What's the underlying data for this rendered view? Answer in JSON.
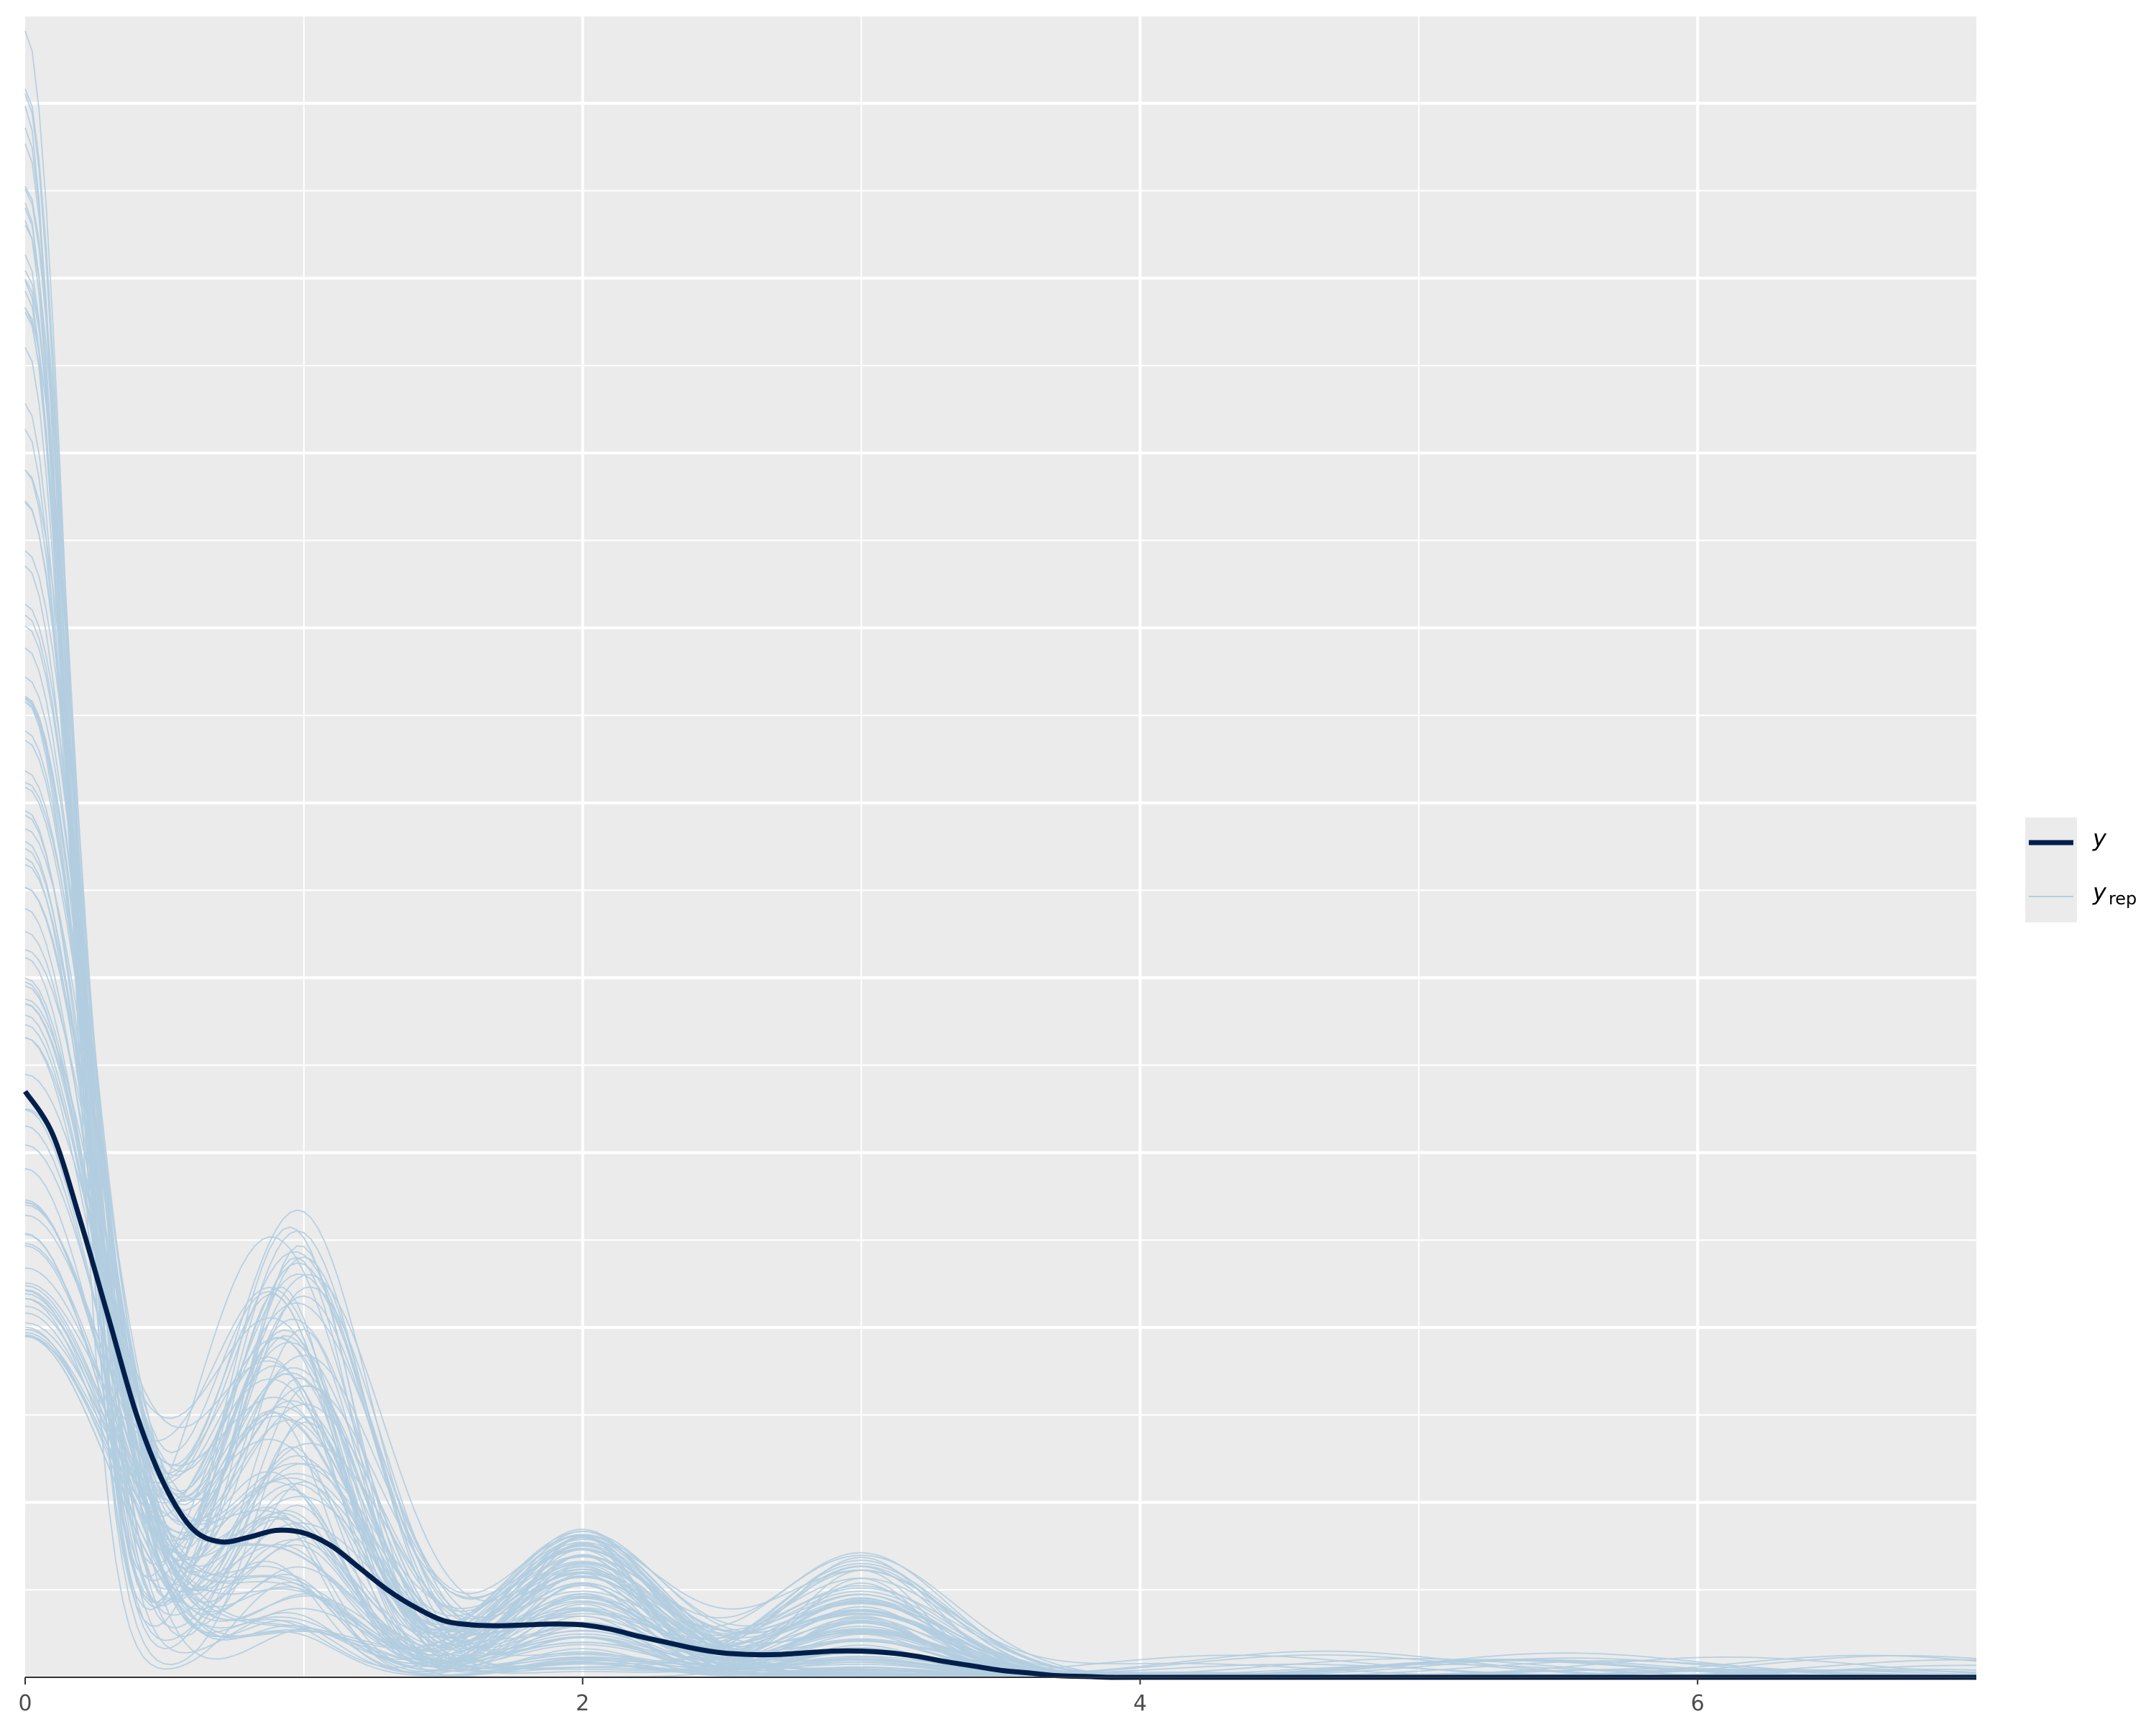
{
  "chart_data": {
    "type": "line",
    "title": "",
    "xlabel": "",
    "ylabel": "",
    "xlim": [
      0,
      7
    ],
    "ylim": [
      0,
      1.9
    ],
    "x_ticks": [
      0,
      2,
      4,
      6
    ],
    "x_tick_labels": [
      "0",
      "2",
      "4",
      "6"
    ],
    "y_ticks_shown": false,
    "grid": true,
    "legend_position": "right",
    "colors": {
      "panel_background": "#EBEBEB",
      "grid": "#FFFFFF",
      "y_line": "#011F4B",
      "yrep_line": "#B3CDE0"
    },
    "series": [
      {
        "name": "y",
        "x": [
          0,
          0.1,
          0.2,
          0.3,
          0.4,
          0.5,
          0.6,
          0.7,
          0.8,
          0.9,
          1.0,
          1.1,
          1.2,
          1.3,
          1.4,
          1.5,
          1.6,
          1.7,
          1.8,
          1.9,
          2.0,
          2.1,
          2.2,
          2.3,
          2.4,
          2.5,
          2.6,
          2.7,
          2.8,
          2.9,
          3.0,
          3.1,
          3.2,
          3.3,
          3.4,
          3.5,
          3.6,
          3.7,
          3.8,
          3.9,
          4.0,
          5.0,
          6.0,
          7.0
        ],
        "y": [
          0.67,
          0.62,
          0.52,
          0.41,
          0.3,
          0.22,
          0.17,
          0.155,
          0.16,
          0.168,
          0.165,
          0.15,
          0.125,
          0.1,
          0.08,
          0.065,
          0.06,
          0.059,
          0.06,
          0.061,
          0.06,
          0.055,
          0.047,
          0.04,
          0.033,
          0.028,
          0.026,
          0.026,
          0.028,
          0.03,
          0.03,
          0.028,
          0.024,
          0.018,
          0.013,
          0.008,
          0.005,
          0.002,
          0.001,
          0.0,
          0.0,
          0.0,
          0.0,
          0.0
        ]
      }
    ],
    "yrep": {
      "name": "y_rep",
      "count": 100,
      "peak_at_zero_range": [
        0.39,
        1.9
      ],
      "bump_at_1_range": [
        0.05,
        0.53
      ],
      "bump_at_2_range": [
        0.0,
        0.17
      ],
      "bump_at_3_range": [
        0.0,
        0.15
      ],
      "tail_max_beyond_4": 0.03
    },
    "legend": {
      "entries": [
        {
          "label": "y",
          "subscript": ""
        },
        {
          "label": "y",
          "subscript": "rep"
        }
      ]
    }
  }
}
